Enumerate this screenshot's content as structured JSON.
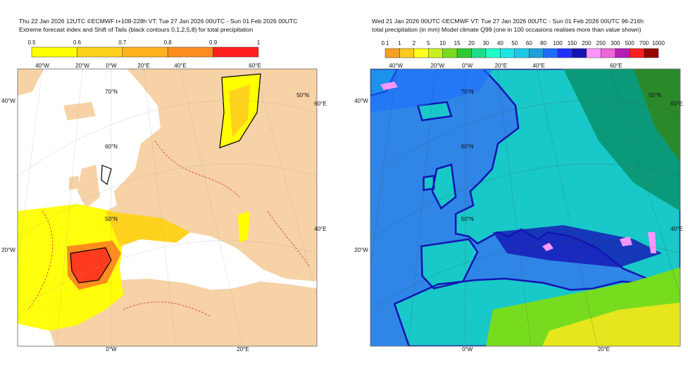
{
  "left_panel": {
    "title_lines": [
      "Thu 22 Jan 2026 12UTC ©ECMWF t+108-228h  VT: Tue 27 Jan 2026 00UTC - Sun 01 Feb 2026 00UTC",
      "Extreme forecast index and Shift of Tails (black contours 0,1,2,5,8) for total precipitation"
    ],
    "colorbar": {
      "labels": [
        0.5,
        0.6,
        0.7,
        0.8,
        0.9,
        1
      ],
      "colors": [
        "#ffff00",
        "#ffd21e",
        "#ffb21e",
        "#ff8c1e",
        "#ff2020"
      ]
    },
    "map_labels": [
      "40°W",
      "20°W",
      "0°W",
      "20°E",
      "40°E",
      "60°E",
      "70°N",
      "60°N",
      "50°N",
      "50°N",
      "40°W",
      "20°W",
      "60°E",
      "40°E",
      "0°W",
      "20°E"
    ]
  },
  "right_panel": {
    "title_lines": [
      "Wed 21 Jan 2026 00UTC ©ECMWF VT: Tue 27 Jan 2026 00UTC - Sun 01 Feb 2026 00UTC   96-216h",
      "total precipitation (in mm)  Model climate Q99 (one in 100 occasions realises more than value shown)"
    ],
    "colorbar": {
      "labels": [
        0.1,
        1,
        2,
        5,
        10,
        15,
        20,
        30,
        40,
        50,
        60,
        80,
        100,
        150,
        200,
        250,
        300,
        500,
        700,
        1000
      ],
      "colors": [
        "#f5a020",
        "#ffc81e",
        "#ffff1e",
        "#c8f01e",
        "#78dc1e",
        "#32c832",
        "#1edc8c",
        "#1effc8",
        "#1ee6e6",
        "#1ec8e6",
        "#1ea0dc",
        "#1e6eff",
        "#1e32ff",
        "#1414b4",
        "#ff96ff",
        "#f064dc",
        "#b41eb4",
        "#ff1e1e",
        "#960000"
      ]
    },
    "map_labels": [
      "40°W",
      "20°W",
      "0°W",
      "20°E",
      "40°E",
      "60°E",
      "70°N",
      "60°N",
      "50°N",
      "50°N",
      "40°W",
      "20°W",
      "60°E",
      "40°E",
      "0°W",
      "20°E"
    ]
  }
}
